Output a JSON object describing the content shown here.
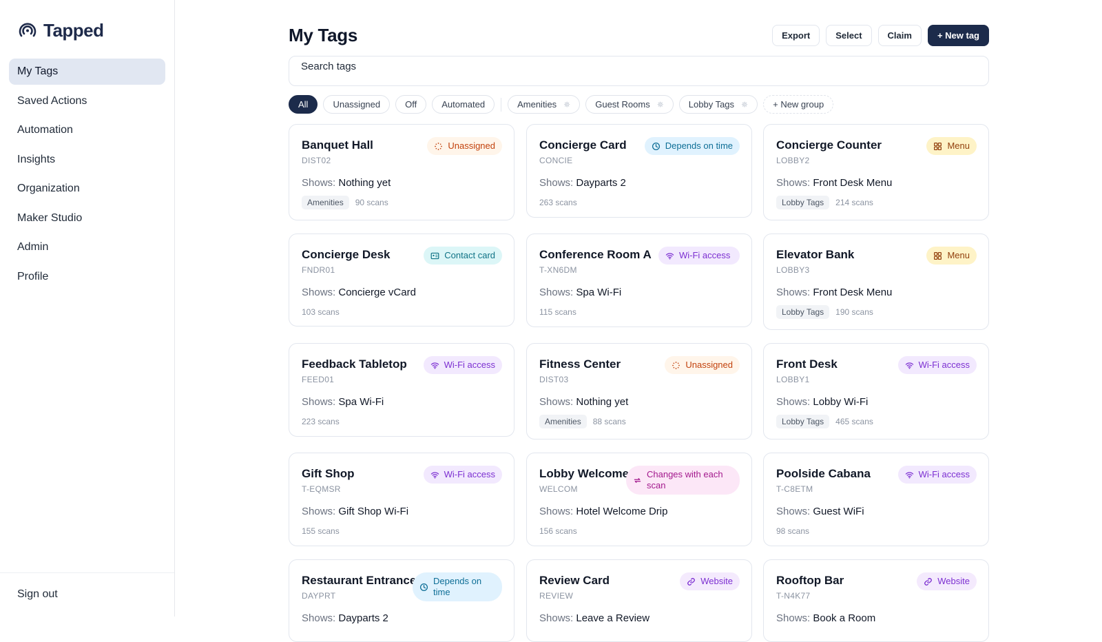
{
  "brand": {
    "name": "Tapped"
  },
  "nav": {
    "items": [
      {
        "label": "My Tags",
        "active": true
      },
      {
        "label": "Saved Actions"
      },
      {
        "label": "Automation"
      },
      {
        "label": "Insights"
      },
      {
        "label": "Organization"
      },
      {
        "label": "Maker Studio"
      },
      {
        "label": "Admin"
      },
      {
        "label": "Profile"
      }
    ],
    "sign_out": "Sign out"
  },
  "header": {
    "title": "My Tags",
    "buttons": {
      "export": "Export",
      "select": "Select",
      "claim": "Claim",
      "new_tag": "+ New tag"
    }
  },
  "search": {
    "value": "Search tags"
  },
  "filters": {
    "status": [
      "All",
      "Unassigned",
      "Off",
      "Automated"
    ],
    "groups": [
      "Amenities",
      "Guest Rooms",
      "Lobby Tags"
    ],
    "new_group": "+ New group"
  },
  "shows_label": "Shows:",
  "cards": [
    {
      "title": "Banquet Hall",
      "code": "DIST02",
      "shows": "Nothing yet",
      "group": "Amenities",
      "scans": "90 scans",
      "badge": {
        "type": "unassigned",
        "label": "Unassigned",
        "icon": "spinner-icon"
      }
    },
    {
      "title": "Concierge Card",
      "code": "CONCIE",
      "shows": "Dayparts 2",
      "group": "",
      "scans": "263 scans",
      "badge": {
        "type": "time",
        "label": "Depends on time",
        "icon": "clock-icon"
      }
    },
    {
      "title": "Concierge Counter",
      "code": "LOBBY2",
      "shows": "Front Desk Menu",
      "group": "Lobby Tags",
      "scans": "214 scans",
      "badge": {
        "type": "menu",
        "label": "Menu",
        "icon": "grid-icon"
      }
    },
    {
      "title": "Concierge Desk",
      "code": "FNDR01",
      "shows": "Concierge vCard",
      "group": "",
      "scans": "103 scans",
      "badge": {
        "type": "contact",
        "label": "Contact card",
        "icon": "id-card-icon"
      }
    },
    {
      "title": "Conference Room A",
      "code": "T-XN6DM",
      "shows": "Spa Wi-Fi",
      "group": "",
      "scans": "115 scans",
      "badge": {
        "type": "wifi",
        "label": "Wi-Fi access",
        "icon": "wifi-icon",
        "wrap": true
      }
    },
    {
      "title": "Elevator Bank",
      "code": "LOBBY3",
      "shows": "Front Desk Menu",
      "group": "Lobby Tags",
      "scans": "190 scans",
      "badge": {
        "type": "menu",
        "label": "Menu",
        "icon": "grid-icon"
      }
    },
    {
      "title": "Feedback Tabletop",
      "code": "FEED01",
      "shows": "Spa Wi-Fi",
      "group": "",
      "scans": "223 scans",
      "badge": {
        "type": "wifi",
        "label": "Wi-Fi access",
        "icon": "wifi-icon"
      }
    },
    {
      "title": "Fitness Center",
      "code": "DIST03",
      "shows": "Nothing yet",
      "group": "Amenities",
      "scans": "88 scans",
      "badge": {
        "type": "unassigned",
        "label": "Unassigned",
        "icon": "spinner-icon"
      }
    },
    {
      "title": "Front Desk",
      "code": "LOBBY1",
      "shows": "Lobby Wi-Fi",
      "group": "Lobby Tags",
      "scans": "465 scans",
      "badge": {
        "type": "wifi",
        "label": "Wi-Fi access",
        "icon": "wifi-icon"
      }
    },
    {
      "title": "Gift Shop",
      "code": "T-EQMSR",
      "shows": "Gift Shop Wi-Fi",
      "group": "",
      "scans": "155 scans",
      "badge": {
        "type": "wifi",
        "label": "Wi-Fi access",
        "icon": "wifi-icon"
      }
    },
    {
      "title": "Lobby Welcome",
      "code": "WELCOM",
      "shows": "Hotel Welcome Drip",
      "group": "",
      "scans": "156 scans",
      "badge": {
        "type": "rotate",
        "label": "Changes with each scan",
        "icon": "repeat-icon",
        "wrap": true
      }
    },
    {
      "title": "Poolside Cabana",
      "code": "T-C8ETM",
      "shows": "Guest WiFi",
      "group": "",
      "scans": "98 scans",
      "badge": {
        "type": "wifi",
        "label": "Wi-Fi access",
        "icon": "wifi-icon"
      }
    },
    {
      "title": "Restaurant Entrance",
      "code": "DAYPRT",
      "shows": "Dayparts 2",
      "group": "",
      "scans": "",
      "badge": {
        "type": "time",
        "label": "Depends on time",
        "icon": "clock-icon",
        "wrap": true
      }
    },
    {
      "title": "Review Card",
      "code": "REVIEW",
      "shows": "Leave a Review",
      "group": "",
      "scans": "",
      "badge": {
        "type": "web",
        "label": "Website",
        "icon": "link-icon"
      }
    },
    {
      "title": "Rooftop Bar",
      "code": "T-N4K77",
      "shows": "Book a Room",
      "group": "",
      "scans": "",
      "badge": {
        "type": "web",
        "label": "Website",
        "icon": "link-icon"
      }
    }
  ]
}
